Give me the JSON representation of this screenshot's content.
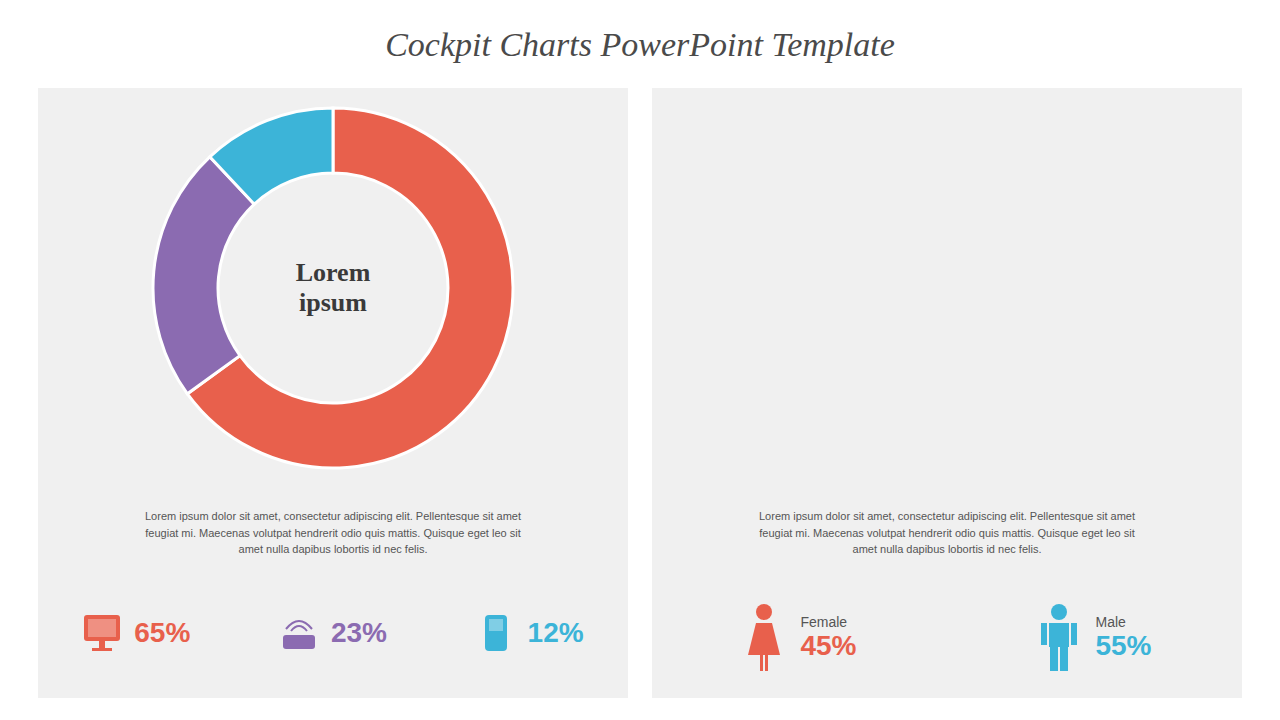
{
  "chart_data": [
    {
      "type": "donut",
      "title": "Cockpit Charts PowerPoint Template",
      "values": [
        65,
        23,
        12
      ],
      "colors": [
        "#e8604c",
        "#8b6bb1",
        "#3cb4d8"
      ],
      "value_labels": [
        "65%",
        "23%",
        "12%"
      ],
      "annotations": [
        "Lorem\nipsum",
        "Lorem ipsum dolor sit amet, consectetur adipiscing elit. Pellentesque sit amet\nfeugiat mi. Maecenas volutpat hendrerit odio quis mattis. Quisque eget leo sit\namet nulla dapibus lobortis id nec felis."
      ]
    },
    {
      "type": "stat",
      "categories": [
        "Female",
        "Male"
      ],
      "values": [
        45,
        55
      ],
      "value_labels": [
        "45%",
        "55%"
      ],
      "colors": [
        "#e8604c",
        "#3cb4d8"
      ],
      "annotations": [
        "Lorem ipsum dolor sit amet, consectetur adipiscing elit. Pellentesque sit amet\nfeugiat mi. Maecenas volutpat hendrerit odio quis mattis. Quisque eget leo sit\namet nulla dapibus lobortis id nec felis."
      ]
    }
  ]
}
